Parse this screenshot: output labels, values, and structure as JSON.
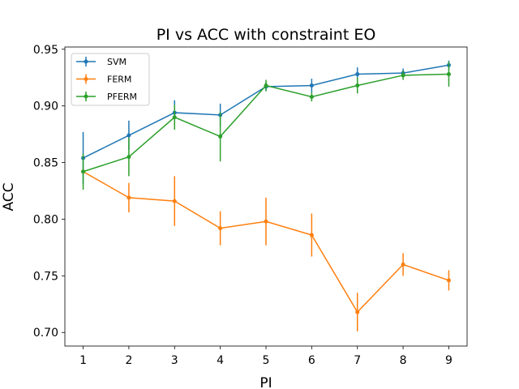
{
  "chart_data": {
    "type": "line",
    "title": "PI vs ACC with constraint EO",
    "xlabel": "PI",
    "ylabel": "ACC",
    "x": [
      1,
      2,
      3,
      4,
      5,
      6,
      7,
      8,
      9
    ],
    "xlim": [
      0.6,
      9.4
    ],
    "ylim": [
      0.688,
      0.952
    ],
    "xticks": [
      1,
      2,
      3,
      4,
      5,
      6,
      7,
      8,
      9
    ],
    "yticks": [
      0.7,
      0.75,
      0.8,
      0.85,
      0.9,
      0.95
    ],
    "ytick_labels": [
      "0.70",
      "0.75",
      "0.80",
      "0.85",
      "0.90",
      "0.95"
    ],
    "grid": false,
    "legend_position": "top-left",
    "series": [
      {
        "name": "SVM",
        "color": "#1f77b4",
        "values": [
          0.854,
          0.874,
          0.894,
          0.892,
          0.917,
          0.918,
          0.928,
          0.929,
          0.936
        ],
        "errors": [
          0.023,
          0.013,
          0.011,
          0.01,
          0.004,
          0.006,
          0.006,
          0.004,
          0.004
        ]
      },
      {
        "name": "FERM",
        "color": "#ff7f0e",
        "values": [
          0.842,
          0.819,
          0.816,
          0.792,
          0.798,
          0.786,
          0.718,
          0.76,
          0.746
        ],
        "errors": [
          0.0,
          0.013,
          0.022,
          0.015,
          0.021,
          0.019,
          0.017,
          0.01,
          0.009
        ]
      },
      {
        "name": "PFERM",
        "color": "#2ca02c",
        "values": [
          0.842,
          0.855,
          0.89,
          0.873,
          0.918,
          0.908,
          0.918,
          0.927,
          0.928
        ],
        "errors": [
          0.016,
          0.017,
          0.011,
          0.022,
          0.005,
          0.004,
          0.007,
          0.004,
          0.011
        ]
      }
    ]
  }
}
